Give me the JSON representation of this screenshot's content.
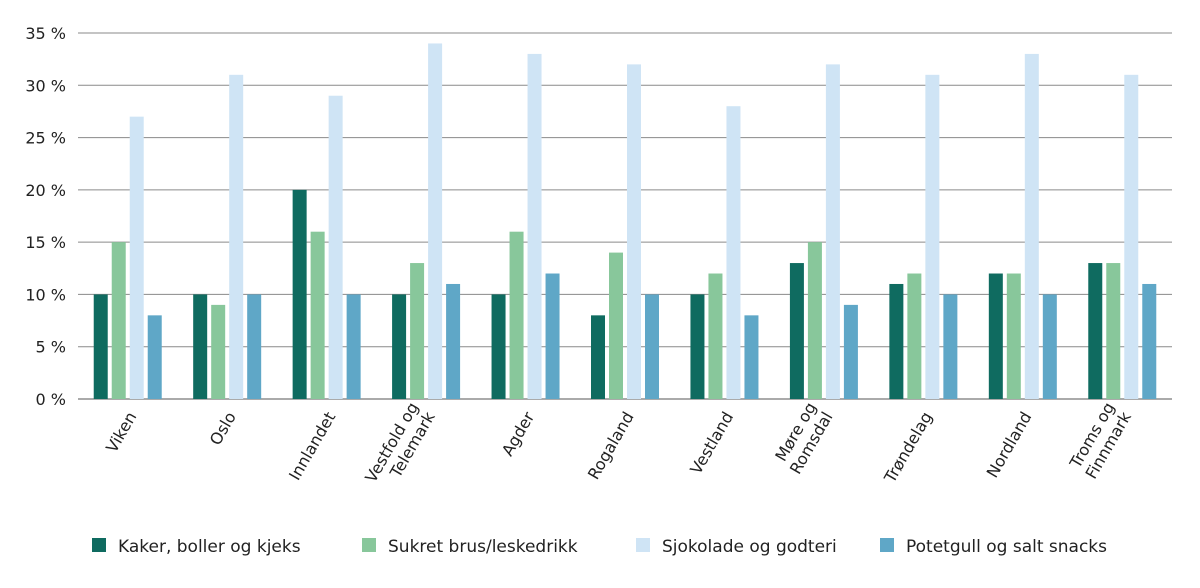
{
  "chart_data": {
    "type": "bar",
    "categories": [
      "Viken",
      "Oslo",
      "Innlandet",
      "Vestfold og Telemark",
      "Agder",
      "Rogaland",
      "Vestland",
      "Møre og Romsdal",
      "Trøndelag",
      "Nordland",
      "Troms og Finnmark"
    ],
    "category_lines": [
      [
        "Viken"
      ],
      [
        "Oslo"
      ],
      [
        "Innlandet"
      ],
      [
        "Vestfold og",
        "Telemark"
      ],
      [
        "Agder"
      ],
      [
        "Rogaland"
      ],
      [
        "Vestland"
      ],
      [
        "Møre og",
        "Romsdal"
      ],
      [
        "Trøndelag"
      ],
      [
        "Nordland"
      ],
      [
        "Troms og",
        "Finnmark"
      ]
    ],
    "series": [
      {
        "name": "Kaker, boller og kjeks",
        "color": "#0f6b60",
        "values": [
          10,
          10,
          20,
          10,
          10,
          8,
          10,
          13,
          11,
          12,
          13
        ]
      },
      {
        "name": "Sukret brus/leskedrikk",
        "color": "#88c79b",
        "values": [
          15,
          9,
          16,
          13,
          16,
          14,
          12,
          15,
          12,
          12,
          13
        ]
      },
      {
        "name": "Sjokolade og godteri",
        "color": "#cfe4f5",
        "values": [
          27,
          31,
          29,
          34,
          33,
          32,
          28,
          32,
          31,
          33,
          31
        ]
      },
      {
        "name": "Potetgull og salt snacks",
        "color": "#5fa7c7",
        "values": [
          8,
          10,
          10,
          11,
          12,
          10,
          8,
          9,
          10,
          10,
          11
        ]
      }
    ],
    "yticks": [
      "0 %",
      "5 %",
      "10 %",
      "15 %",
      "20 %",
      "25 %",
      "30 %",
      "35 %"
    ],
    "ylim": [
      0,
      35
    ],
    "grid": true,
    "legend_position": "bottom",
    "title": "",
    "xlabel": "",
    "ylabel": ""
  }
}
